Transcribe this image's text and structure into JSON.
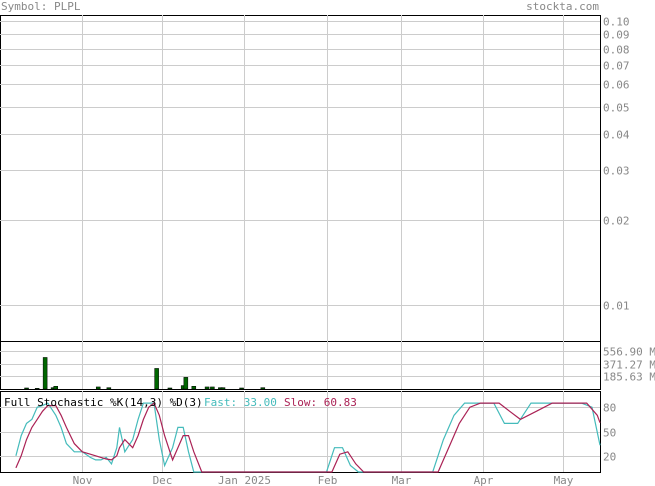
{
  "header": {
    "symbol_label": "Symbol: PLPL",
    "site": "stockta.com"
  },
  "chart_data": [
    {
      "type": "line",
      "panel": "price",
      "scale": "log",
      "ylim": [
        0.0075,
        0.105
      ],
      "yticks": [
        "0.10",
        "0.09",
        "0.08",
        "0.07",
        "0.06",
        "0.05",
        "0.04",
        "0.03",
        "0.02",
        "0.01"
      ],
      "grid": true,
      "series": []
    },
    {
      "type": "bar",
      "panel": "volume",
      "yticks": [
        "556.90 M",
        "371.27 M",
        "185.63 M"
      ],
      "ylim": [
        0,
        700
      ],
      "bar_color": "#006600",
      "bars": [
        {
          "date": "2024-10-11",
          "value": 15
        },
        {
          "date": "2024-10-15",
          "value": 10
        },
        {
          "date": "2024-10-18",
          "value": 460
        },
        {
          "date": "2024-10-21",
          "value": 20
        },
        {
          "date": "2024-10-22",
          "value": 40
        },
        {
          "date": "2024-11-07",
          "value": 30
        },
        {
          "date": "2024-11-11",
          "value": 20
        },
        {
          "date": "2024-11-29",
          "value": 300
        },
        {
          "date": "2024-12-04",
          "value": 15
        },
        {
          "date": "2024-12-09",
          "value": 50
        },
        {
          "date": "2024-12-10",
          "value": 170
        },
        {
          "date": "2024-12-13",
          "value": 40
        },
        {
          "date": "2024-12-18",
          "value": 30
        },
        {
          "date": "2024-12-20",
          "value": 30
        },
        {
          "date": "2024-12-23",
          "value": 20
        },
        {
          "date": "2024-12-24",
          "value": 20
        },
        {
          "date": "2024-12-31",
          "value": 15
        },
        {
          "date": "2025-01-08",
          "value": 20
        }
      ]
    },
    {
      "type": "line",
      "panel": "stochastic",
      "title": "Full Stochastic %K(14,3) %D(3)",
      "fast_label": "Fast: 33.00",
      "slow_label": "Slow: 60.83",
      "ylim": [
        0,
        100
      ],
      "yticks": [
        "80",
        "50",
        "20"
      ],
      "series": [
        {
          "name": "Fast",
          "color": "#44bbbb",
          "points": [
            [
              "2024-10-07",
              20
            ],
            [
              "2024-10-09",
              45
            ],
            [
              "2024-10-11",
              60
            ],
            [
              "2024-10-13",
              65
            ],
            [
              "2024-10-15",
              80
            ],
            [
              "2024-10-17",
              82
            ],
            [
              "2024-10-19",
              85
            ],
            [
              "2024-10-22",
              70
            ],
            [
              "2024-10-24",
              55
            ],
            [
              "2024-10-26",
              35
            ],
            [
              "2024-10-29",
              25
            ],
            [
              "2024-11-01",
              25
            ],
            [
              "2024-11-04",
              18
            ],
            [
              "2024-11-06",
              15
            ],
            [
              "2024-11-08",
              15
            ],
            [
              "2024-11-10",
              18
            ],
            [
              "2024-11-12",
              10
            ],
            [
              "2024-11-14",
              30
            ],
            [
              "2024-11-15",
              55
            ],
            [
              "2024-11-17",
              25
            ],
            [
              "2024-11-20",
              40
            ],
            [
              "2024-11-22",
              65
            ],
            [
              "2024-11-24",
              85
            ],
            [
              "2024-11-26",
              85
            ],
            [
              "2024-11-28",
              85
            ],
            [
              "2024-11-30",
              40
            ],
            [
              "2024-12-02",
              8
            ],
            [
              "2024-12-05",
              30
            ],
            [
              "2024-12-07",
              55
            ],
            [
              "2024-12-09",
              55
            ],
            [
              "2024-12-11",
              25
            ],
            [
              "2024-12-13",
              0
            ],
            [
              "2025-02-01",
              0
            ],
            [
              "2025-02-04",
              30
            ],
            [
              "2025-02-07",
              30
            ],
            [
              "2025-02-10",
              8
            ],
            [
              "2025-02-13",
              0
            ],
            [
              "2025-03-13",
              0
            ],
            [
              "2025-03-17",
              40
            ],
            [
              "2025-03-21",
              70
            ],
            [
              "2025-03-25",
              85
            ],
            [
              "2025-03-30",
              85
            ],
            [
              "2025-04-05",
              85
            ],
            [
              "2025-04-09",
              60
            ],
            [
              "2025-04-14",
              60
            ],
            [
              "2025-04-19",
              85
            ],
            [
              "2025-04-25",
              85
            ],
            [
              "2025-05-02",
              85
            ],
            [
              "2025-05-08",
              85
            ],
            [
              "2025-05-12",
              80
            ],
            [
              "2025-05-15",
              33
            ]
          ]
        },
        {
          "name": "Slow",
          "color": "#aa2255",
          "points": [
            [
              "2024-10-07",
              5
            ],
            [
              "2024-10-09",
              20
            ],
            [
              "2024-10-11",
              40
            ],
            [
              "2024-10-13",
              55
            ],
            [
              "2024-10-15",
              65
            ],
            [
              "2024-10-17",
              75
            ],
            [
              "2024-10-19",
              82
            ],
            [
              "2024-10-22",
              82
            ],
            [
              "2024-10-24",
              70
            ],
            [
              "2024-10-26",
              55
            ],
            [
              "2024-10-29",
              35
            ],
            [
              "2024-11-01",
              25
            ],
            [
              "2024-11-04",
              22
            ],
            [
              "2024-11-06",
              20
            ],
            [
              "2024-11-08",
              18
            ],
            [
              "2024-11-10",
              16
            ],
            [
              "2024-11-12",
              15
            ],
            [
              "2024-11-14",
              20
            ],
            [
              "2024-11-15",
              30
            ],
            [
              "2024-11-17",
              40
            ],
            [
              "2024-11-20",
              30
            ],
            [
              "2024-11-22",
              45
            ],
            [
              "2024-11-24",
              65
            ],
            [
              "2024-11-26",
              80
            ],
            [
              "2024-11-28",
              85
            ],
            [
              "2024-11-30",
              70
            ],
            [
              "2024-12-02",
              45
            ],
            [
              "2024-12-05",
              15
            ],
            [
              "2024-12-07",
              30
            ],
            [
              "2024-12-09",
              45
            ],
            [
              "2024-12-11",
              45
            ],
            [
              "2024-12-13",
              25
            ],
            [
              "2024-12-16",
              0
            ],
            [
              "2025-02-03",
              0
            ],
            [
              "2025-02-06",
              22
            ],
            [
              "2025-02-09",
              25
            ],
            [
              "2025-02-12",
              10
            ],
            [
              "2025-02-15",
              0
            ],
            [
              "2025-03-15",
              0
            ],
            [
              "2025-03-19",
              30
            ],
            [
              "2025-03-23",
              60
            ],
            [
              "2025-03-27",
              80
            ],
            [
              "2025-03-31",
              85
            ],
            [
              "2025-04-07",
              85
            ],
            [
              "2025-04-11",
              75
            ],
            [
              "2025-04-15",
              65
            ],
            [
              "2025-04-21",
              75
            ],
            [
              "2025-04-27",
              85
            ],
            [
              "2025-05-04",
              85
            ],
            [
              "2025-05-10",
              85
            ],
            [
              "2025-05-14",
              70
            ],
            [
              "2025-05-15",
              60.83
            ]
          ]
        }
      ]
    }
  ],
  "x_axis": {
    "range": [
      "2024-10-01",
      "2025-05-15"
    ],
    "ticks": [
      {
        "date": "2024-11-01",
        "label": "Nov"
      },
      {
        "date": "2024-12-01",
        "label": "Dec"
      },
      {
        "date": "2025-01-01",
        "label": "Jan 2025"
      },
      {
        "date": "2025-02-01",
        "label": "Feb"
      },
      {
        "date": "2025-03-01",
        "label": "Mar"
      },
      {
        "date": "2025-04-01",
        "label": "Apr"
      },
      {
        "date": "2025-05-01",
        "label": "May"
      }
    ]
  }
}
